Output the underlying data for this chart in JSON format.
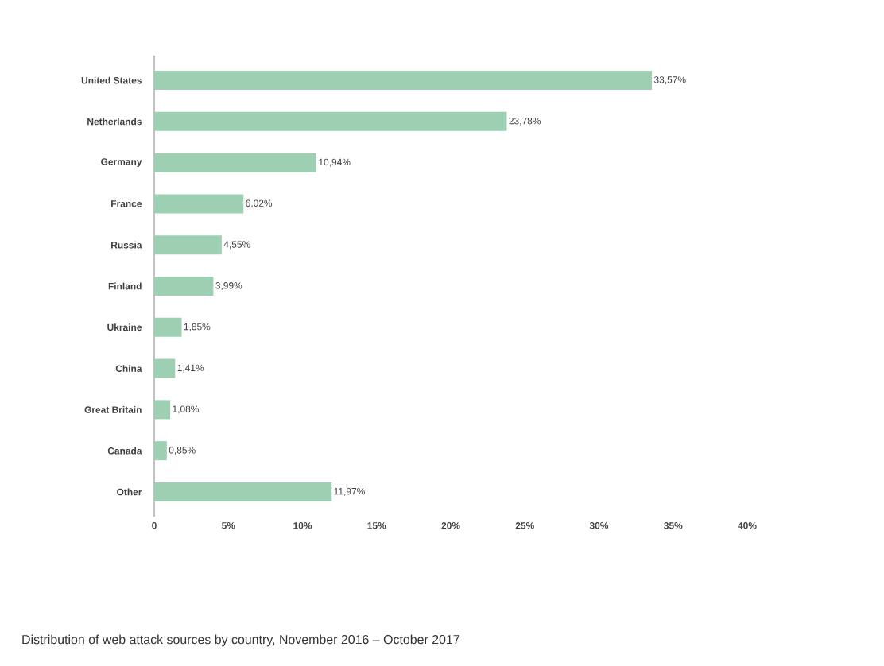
{
  "chart_data": {
    "type": "bar",
    "orientation": "horizontal",
    "categories": [
      "United States",
      "Netherlands",
      "Germany",
      "France",
      "Russia",
      "Finland",
      "Ukraine",
      "China",
      "Great Britain",
      "Canada",
      "Other"
    ],
    "values": [
      33.57,
      23.78,
      10.94,
      6.02,
      4.55,
      3.99,
      1.85,
      1.41,
      1.08,
      0.85,
      11.97
    ],
    "value_labels": [
      "33,57%",
      "23,78%",
      "10,94%",
      "6,02%",
      "4,55%",
      "3,99%",
      "1,85%",
      "1,41%",
      "1,08%",
      "0,85%",
      "11,97%"
    ],
    "color": "#9dd0b2",
    "xlim": [
      0,
      40
    ],
    "xticks": [
      0,
      {
        "value": 5,
        "label": "5%"
      },
      {
        "value": 10,
        "label": "10%"
      },
      {
        "value": 15,
        "label": "15%"
      },
      {
        "value": 20,
        "label": "20%"
      },
      {
        "value": 25,
        "label": "25%"
      },
      {
        "value": 30,
        "label": "30%"
      },
      {
        "value": 35,
        "label": "35%"
      },
      {
        "value": 40,
        "label": "40%"
      }
    ],
    "annotations": [
      "Distribution of web attack sources by country, November 2016 – October 2017"
    ]
  }
}
